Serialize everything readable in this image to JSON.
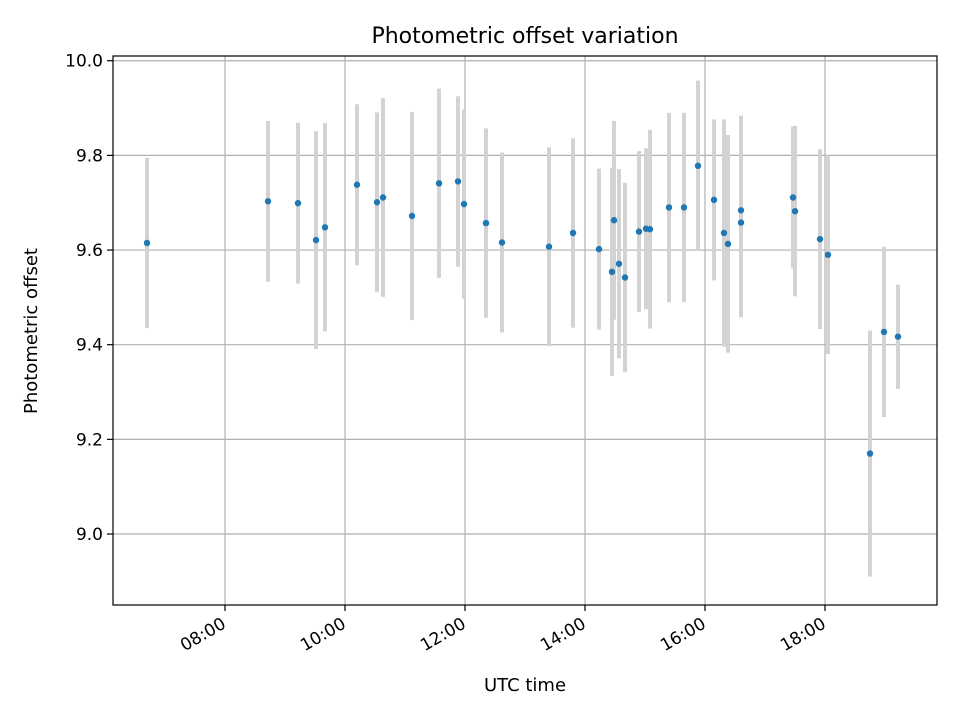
{
  "chart_data": {
    "type": "scatter",
    "title": "Photometric offset variation",
    "xlabel": "UTC time",
    "ylabel": "Photometric offset",
    "x_unit": "time of day (UTC)",
    "xlim": [
      "06:08",
      "19:52"
    ],
    "ylim": [
      8.85,
      10.01
    ],
    "x_ticks": [
      "08:00",
      "10:00",
      "12:00",
      "14:00",
      "16:00",
      "18:00"
    ],
    "y_ticks": [
      "9.0",
      "9.2",
      "9.4",
      "9.6",
      "9.8",
      "10.0"
    ],
    "grid": true,
    "legend": "none",
    "colors": {
      "points": "#1f77b4",
      "error_bars": "#d3d3d3",
      "grid": "#b0b0b0",
      "axes": "#000000"
    },
    "series": [
      {
        "points": [
          {
            "x": "06:42",
            "y": 9.615,
            "err": 0.18
          },
          {
            "x": "08:43",
            "y": 9.703,
            "err": 0.17
          },
          {
            "x": "09:13",
            "y": 9.699,
            "err": 0.17
          },
          {
            "x": "09:31",
            "y": 9.621,
            "err": 0.23
          },
          {
            "x": "09:40",
            "y": 9.648,
            "err": 0.22
          },
          {
            "x": "10:12",
            "y": 9.738,
            "err": 0.17
          },
          {
            "x": "10:32",
            "y": 9.701,
            "err": 0.19
          },
          {
            "x": "10:38",
            "y": 9.711,
            "err": 0.21
          },
          {
            "x": "11:07",
            "y": 9.672,
            "err": 0.22
          },
          {
            "x": "11:34",
            "y": 9.741,
            "err": 0.2
          },
          {
            "x": "11:53",
            "y": 9.745,
            "err": 0.18
          },
          {
            "x": "11:59",
            "y": 9.697,
            "err": 0.2
          },
          {
            "x": "12:21",
            "y": 9.657,
            "err": 0.2
          },
          {
            "x": "12:37",
            "y": 9.616,
            "err": 0.19
          },
          {
            "x": "13:24",
            "y": 9.607,
            "err": 0.21
          },
          {
            "x": "13:48",
            "y": 9.636,
            "err": 0.2
          },
          {
            "x": "14:14",
            "y": 9.602,
            "err": 0.17
          },
          {
            "x": "14:27",
            "y": 9.554,
            "err": 0.22
          },
          {
            "x": "14:29",
            "y": 9.663,
            "err": 0.21
          },
          {
            "x": "14:34",
            "y": 9.571,
            "err": 0.2
          },
          {
            "x": "14:40",
            "y": 9.542,
            "err": 0.2
          },
          {
            "x": "14:54",
            "y": 9.639,
            "err": 0.17
          },
          {
            "x": "15:01",
            "y": 9.645,
            "err": 0.17
          },
          {
            "x": "15:05",
            "y": 9.644,
            "err": 0.21
          },
          {
            "x": "15:24",
            "y": 9.69,
            "err": 0.2
          },
          {
            "x": "15:39",
            "y": 9.69,
            "err": 0.2
          },
          {
            "x": "15:53",
            "y": 9.778,
            "err": 0.18
          },
          {
            "x": "16:09",
            "y": 9.706,
            "err": 0.17
          },
          {
            "x": "16:19",
            "y": 9.636,
            "err": 0.24
          },
          {
            "x": "16:23",
            "y": 9.613,
            "err": 0.23
          },
          {
            "x": "16:36",
            "y": 9.684,
            "err": 0.2
          },
          {
            "x": "16:36",
            "y": 9.658,
            "err": 0.2
          },
          {
            "x": "17:28",
            "y": 9.711,
            "err": 0.15
          },
          {
            "x": "17:30",
            "y": 9.682,
            "err": 0.18
          },
          {
            "x": "17:55",
            "y": 9.623,
            "err": 0.19
          },
          {
            "x": "18:03",
            "y": 9.59,
            "err": 0.21
          },
          {
            "x": "18:45",
            "y": 9.17,
            "err": 0.26
          },
          {
            "x": "18:59",
            "y": 9.427,
            "err": 0.18
          },
          {
            "x": "19:13",
            "y": 9.417,
            "err": 0.11
          }
        ]
      }
    ]
  }
}
